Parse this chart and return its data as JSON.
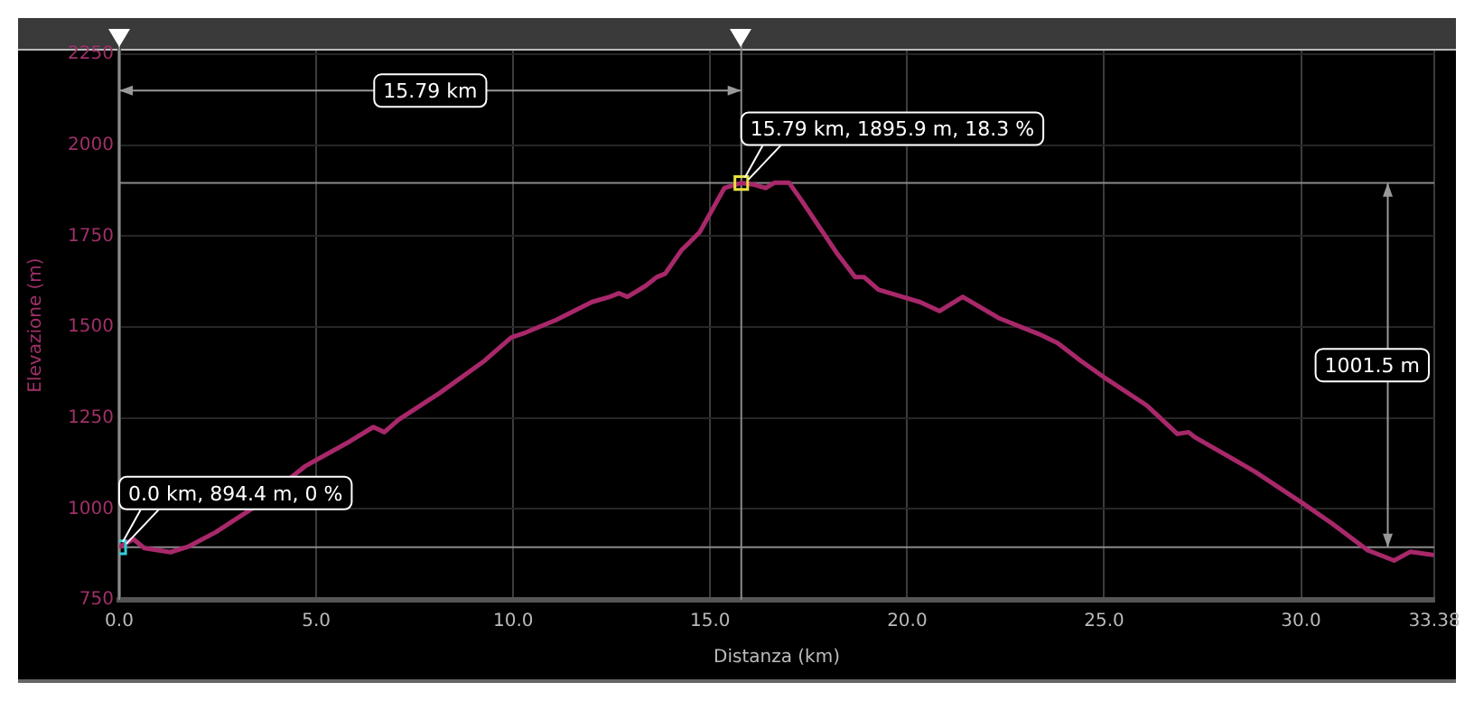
{
  "chart_data": {
    "type": "line",
    "xlabel": "Distanza (km)",
    "ylabel": "Elevazione (m)",
    "xlim": [
      0,
      33.38
    ],
    "ylim": [
      750,
      2260
    ],
    "xticks": [
      {
        "value": 0,
        "label": "0.0"
      },
      {
        "value": 5,
        "label": "5.0"
      },
      {
        "value": 10,
        "label": "10.0"
      },
      {
        "value": 15,
        "label": "15.0"
      },
      {
        "value": 20,
        "label": "20.0"
      },
      {
        "value": 25,
        "label": "25.0"
      },
      {
        "value": 30,
        "label": "30.0"
      },
      33.38
    ],
    "yticks": [
      750,
      1000,
      1250,
      1500,
      1750,
      2000,
      2250
    ],
    "grid": true,
    "legend": false,
    "marker": "none",
    "line_style": "solid",
    "series": [
      {
        "type": "line",
        "color": "#a8286a",
        "x": [
          0,
          0.36,
          0.64,
          1.3,
          1.77,
          2.45,
          3.36,
          4.73,
          5.86,
          6.45,
          6.73,
          7.09,
          8.14,
          9.27,
          9.95,
          10.32,
          11.1,
          12.0,
          12.45,
          12.68,
          12.9,
          13.36,
          13.64,
          13.86,
          14.27,
          14.73,
          15.36,
          15.79,
          16.09,
          16.41,
          16.64,
          17.0,
          17.32,
          18.23,
          18.68,
          18.91,
          19.27,
          19.73,
          20.32,
          20.82,
          21.41,
          22.32,
          23.36,
          23.82,
          24.41,
          25.05,
          26.09,
          26.86,
          27.14,
          27.32,
          28.5,
          28.82,
          30.05,
          30.77,
          31.68,
          32.36,
          32.77,
          33.38
        ],
        "values": [
          894.4,
          917,
          892,
          881,
          897,
          936,
          1000,
          1118,
          1186,
          1225,
          1211,
          1245,
          1319,
          1407,
          1471,
          1485,
          1520,
          1569,
          1583,
          1593,
          1583,
          1613,
          1637,
          1647,
          1711,
          1760,
          1882,
          1895.9,
          1892,
          1882,
          1897,
          1897,
          1848,
          1701,
          1637,
          1637,
          1603,
          1588,
          1569,
          1544,
          1583,
          1525,
          1480,
          1456,
          1407,
          1358,
          1284,
          1206,
          1211,
          1196,
          1123,
          1103,
          1015,
          961,
          887,
          858,
          882,
          873
        ]
      },
      {
        "type": "scatter",
        "marker": "square",
        "x": [
          0,
          15.79
        ],
        "values": [
          894.4,
          1895.9
        ],
        "colors": [
          "#30d0d8",
          "#e8e040"
        ]
      }
    ],
    "ref_lines": [
      {
        "axis": "x",
        "value": 0,
        "color": "#8a8a8a"
      },
      {
        "axis": "x",
        "value": 15.79,
        "color": "#8a8a8a"
      },
      {
        "axis": "y",
        "value": 1895.9,
        "color": "#8a8a8a"
      },
      {
        "axis": "y",
        "value": 894.4,
        "color": "#8a8a8a"
      }
    ],
    "annotations": [
      {
        "text": "0.0 km, 894.4 m, 0 %",
        "x": 0,
        "y": 894.4
      },
      {
        "text": "15.79 km, 1895.9 m, 18.3 %",
        "x": 15.79,
        "y": 1895.9
      },
      {
        "text": "15.79 km",
        "x": 15.79,
        "y": 2150
      },
      {
        "text": "1001.5 m",
        "x": 32.2,
        "y": 1895.9
      }
    ]
  }
}
